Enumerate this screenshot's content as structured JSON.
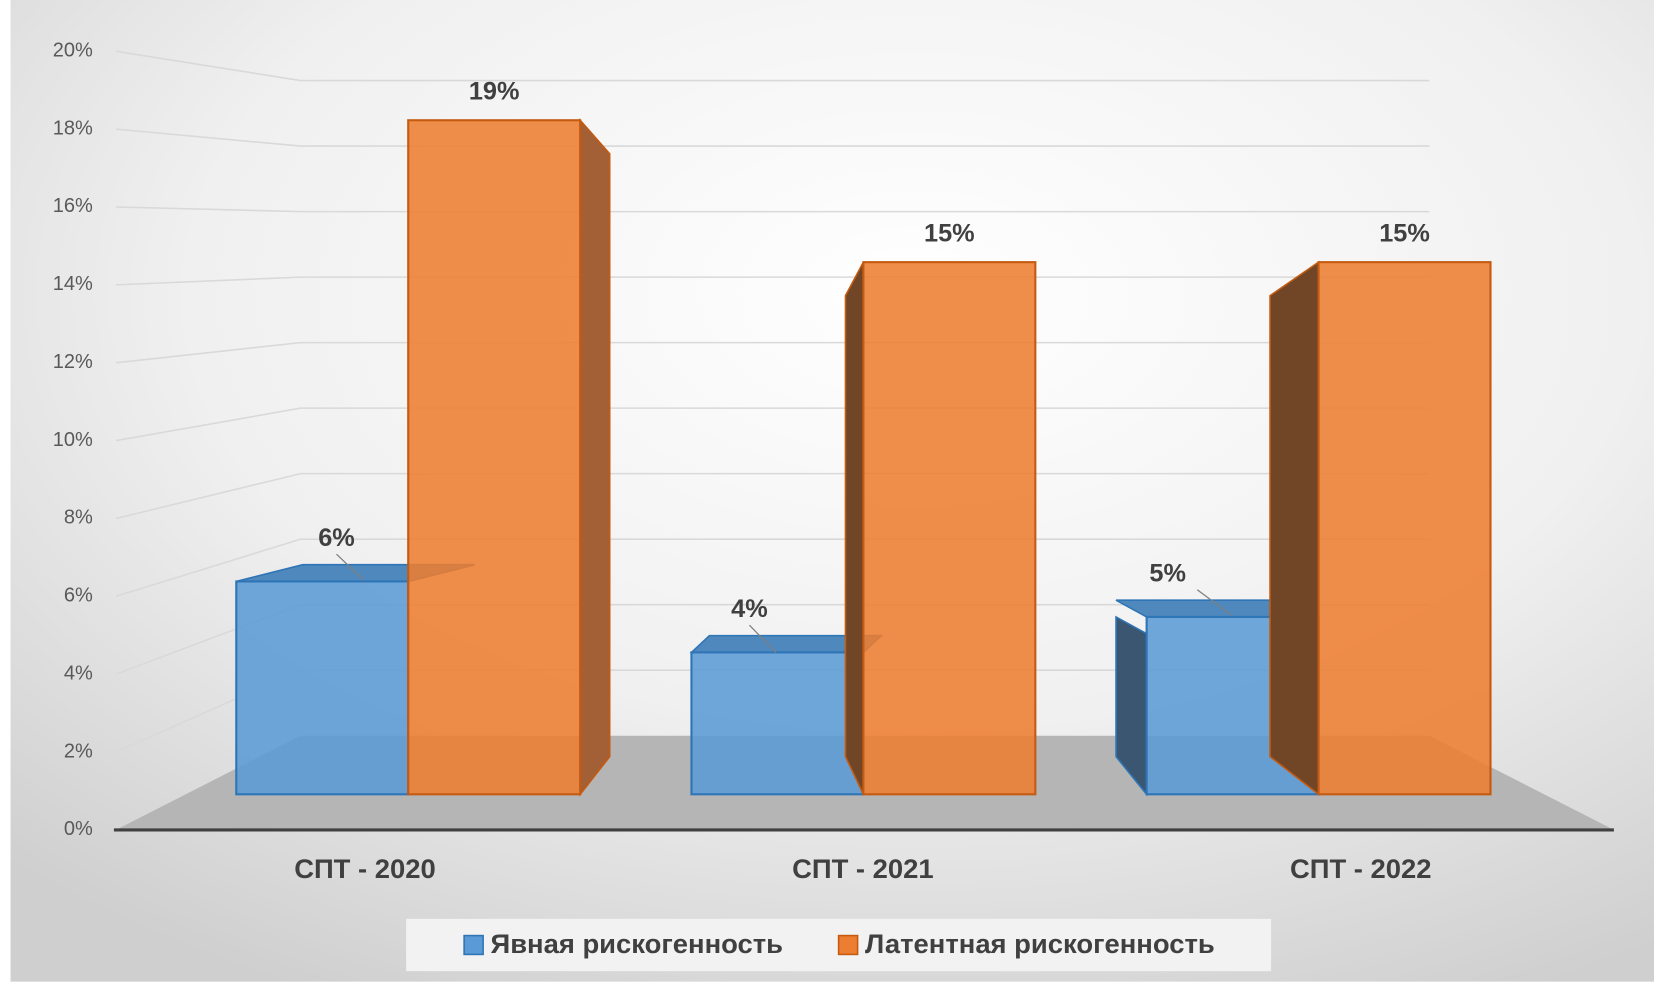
{
  "chart_data": {
    "type": "bar3d",
    "categories": [
      "СПТ - 2020",
      "СПТ - 2021",
      "СПТ - 2022"
    ],
    "series": [
      {
        "name": "Явная рискогенность",
        "color": "#5b9bd5",
        "values": [
          6,
          4,
          5
        ],
        "value_labels": [
          "6%",
          "4%",
          "5%"
        ]
      },
      {
        "name": "Латентная рискогенность",
        "color": "#ed7d31",
        "values": [
          19,
          15,
          15
        ],
        "value_labels": [
          "19%",
          "15%",
          "15%"
        ]
      }
    ],
    "ylim": [
      0,
      20
    ],
    "yticks": [
      {
        "value": 0,
        "label": "0%"
      },
      {
        "value": 2,
        "label": "2%"
      },
      {
        "value": 4,
        "label": "4%"
      },
      {
        "value": 6,
        "label": "6%"
      },
      {
        "value": 8,
        "label": "8%"
      },
      {
        "value": 10,
        "label": "10%"
      },
      {
        "value": 12,
        "label": "12%"
      },
      {
        "value": 14,
        "label": "14%"
      },
      {
        "value": 16,
        "label": "16%"
      },
      {
        "value": 18,
        "label": "18%"
      },
      {
        "value": 20,
        "label": "20%"
      }
    ],
    "grid": true,
    "legend": "bottom"
  }
}
